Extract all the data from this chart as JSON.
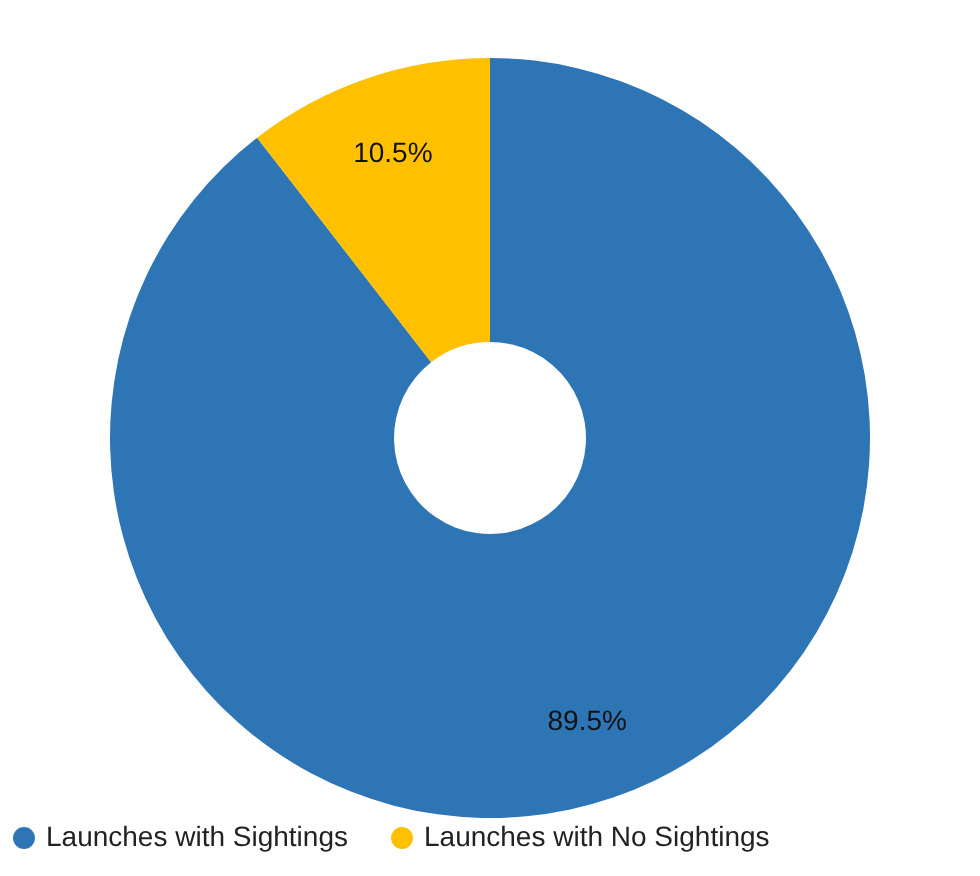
{
  "chart_data": {
    "type": "donut",
    "categories": [
      "Launches with Sightings",
      "Launches with No Sightings"
    ],
    "values": [
      89.5,
      10.5
    ],
    "colors": [
      "#2e75b6",
      "#ffc000"
    ],
    "value_labels": [
      "89.5%",
      "10.5%"
    ],
    "legend": "bottom"
  }
}
